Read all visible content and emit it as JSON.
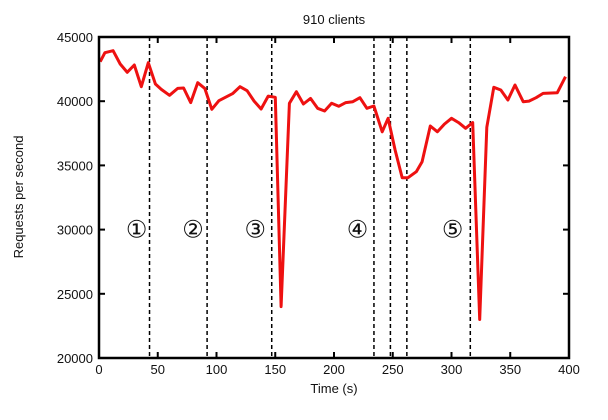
{
  "chart_data": {
    "type": "line",
    "title": "910 clients",
    "xlabel": "Time (s)",
    "ylabel": "Requests per second",
    "xlim": [
      0,
      400
    ],
    "ylim": [
      20000,
      45000
    ],
    "xticks": [
      0,
      50,
      100,
      150,
      200,
      250,
      300,
      350,
      400
    ],
    "yticks": [
      20000,
      25000,
      30000,
      35000,
      40000,
      45000
    ],
    "grid": false,
    "line_color": "#ee1111",
    "series": [
      {
        "x": [
          1,
          5,
          12,
          18,
          24,
          30,
          36,
          42,
          48,
          53,
          60,
          67,
          72,
          78,
          84,
          90,
          96,
          102,
          107,
          114,
          120,
          126,
          132,
          138,
          144,
          150,
          155,
          162,
          168,
          174,
          180,
          186,
          192,
          198,
          204,
          210,
          216,
          222,
          228,
          234,
          241,
          246,
          252,
          258,
          263,
          270,
          275,
          282,
          288,
          294,
          300,
          306,
          312,
          318,
          324,
          330,
          336,
          342,
          348,
          354,
          361,
          366,
          372,
          378,
          390,
          397
        ],
        "y": [
          43080,
          43780,
          43930,
          42900,
          42250,
          42820,
          41130,
          43000,
          41340,
          40920,
          40460,
          41000,
          41030,
          39890,
          41440,
          41000,
          39370,
          40040,
          40270,
          40610,
          41130,
          40820,
          40010,
          39390,
          40400,
          40300,
          24000,
          39840,
          40740,
          39780,
          40220,
          39450,
          39240,
          39840,
          39600,
          39890,
          39960,
          40270,
          39450,
          39630,
          37620,
          38670,
          36200,
          34040,
          34040,
          34510,
          35290,
          38070,
          37620,
          38220,
          38670,
          38330,
          37890,
          38330,
          23000,
          37970,
          41080,
          40870,
          40090,
          41260,
          39960,
          40010,
          40270,
          40610,
          40660,
          41910
        ]
      }
    ],
    "vertical_markers": [
      43,
      92,
      147,
      234,
      248,
      262,
      316
    ],
    "annotations": [
      {
        "text": "①",
        "x": 32,
        "y": 30000
      },
      {
        "text": "②",
        "x": 80,
        "y": 30000
      },
      {
        "text": "③",
        "x": 133,
        "y": 30000
      },
      {
        "text": "④",
        "x": 220,
        "y": 30000
      },
      {
        "text": "⑤",
        "x": 301,
        "y": 30000
      }
    ]
  }
}
